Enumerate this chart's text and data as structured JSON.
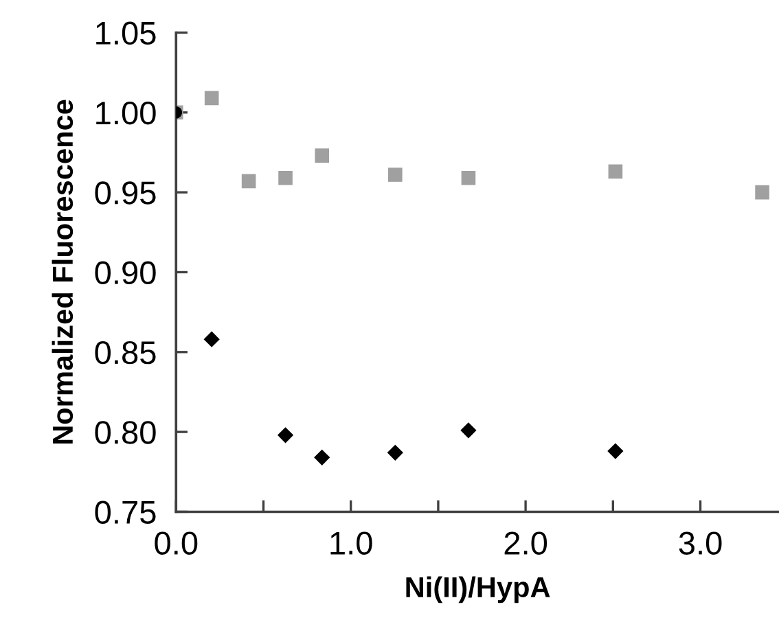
{
  "chart_data": {
    "type": "scatter",
    "xlabel": "Ni(II)/HypA",
    "ylabel": "Normalized Fluorescence",
    "xlim": [
      0,
      3.45
    ],
    "ylim": [
      0.75,
      1.05
    ],
    "xticks": [
      {
        "value": 0,
        "label": "0.0"
      },
      {
        "value": 0.5,
        "label": null
      },
      {
        "value": 1,
        "label": "1.0"
      },
      {
        "value": 1.5,
        "label": null
      },
      {
        "value": 2,
        "label": "2.0"
      },
      {
        "value": 2.5,
        "label": null
      },
      {
        "value": 3,
        "label": "3.0"
      }
    ],
    "yticks": [
      {
        "value": 0.75,
        "label": "0.75"
      },
      {
        "value": 0.8,
        "label": "0.80"
      },
      {
        "value": 0.85,
        "label": "0.85"
      },
      {
        "value": 0.9,
        "label": "0.90"
      },
      {
        "value": 0.95,
        "label": "0.95"
      },
      {
        "value": 1.0,
        "label": "1.00"
      },
      {
        "value": 1.05,
        "label": "1.05"
      }
    ],
    "grid": false,
    "legend": false,
    "series": [
      {
        "color": "#a0a0a0",
        "marker": "square",
        "x": [
          0,
          0.204,
          0.416,
          0.626,
          0.835,
          1.254,
          1.673,
          2.514,
          3.354
        ],
        "values": [
          1.0,
          1.009,
          0.957,
          0.959,
          0.973,
          0.961,
          0.959,
          0.963,
          0.95
        ]
      },
      {
        "color": "#000000",
        "marker": "diamond",
        "x": [
          0.204,
          0.626,
          0.835,
          1.254,
          1.673,
          2.514
        ],
        "values": [
          0.858,
          0.798,
          0.784,
          0.787,
          0.801,
          0.788
        ]
      },
      {
        "color": "#000000",
        "marker": "circle",
        "x": [
          0
        ],
        "values": [
          1.0
        ]
      }
    ]
  }
}
